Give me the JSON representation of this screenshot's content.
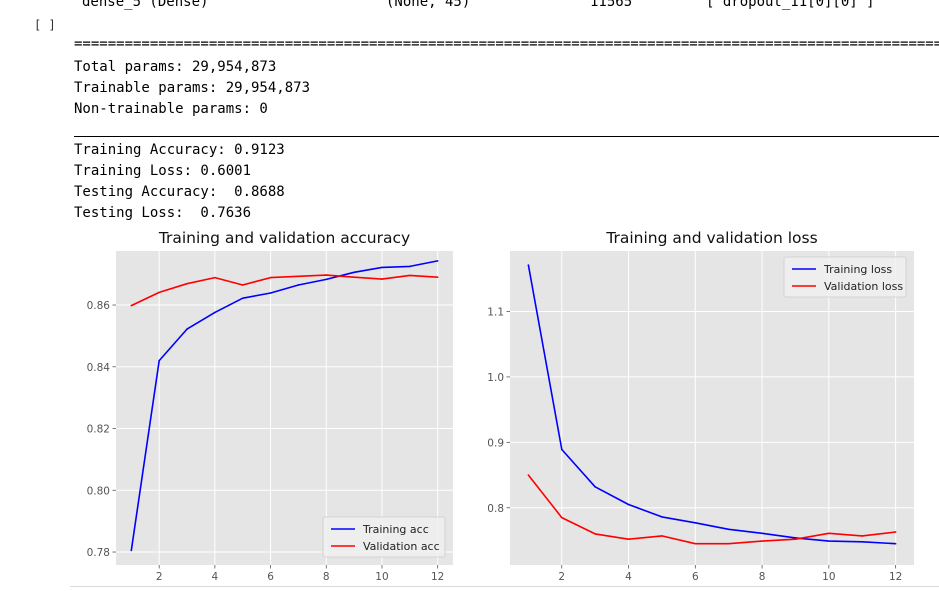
{
  "cell": {
    "prompt": "[ ]"
  },
  "model_summary": {
    "top_row": {
      "layer": "dense_5 (Dense)",
      "shape": "(None, 45)",
      "params": "11565",
      "connected": "['dropout_11[0][0]']"
    },
    "separator": "==================================================================================================================",
    "total": "Total params: 29,954,873",
    "trainable": "Trainable params: 29,954,873",
    "non_trainable": "Non-trainable params: 0"
  },
  "metrics": {
    "train_acc": "Training Accuracy: 0.9123",
    "train_loss": "Training Loss: 0.6001",
    "test_acc": "Testing Accuracy:  0.8688",
    "test_loss": "Testing Loss:  0.7636"
  },
  "chart_data": [
    {
      "type": "line",
      "title": "Training and validation accuracy",
      "xlabel": "",
      "ylabel": "",
      "x": [
        1,
        2,
        3,
        4,
        5,
        6,
        7,
        8,
        9,
        10,
        11,
        12
      ],
      "xticks": [
        2,
        4,
        6,
        8,
        10,
        12
      ],
      "yticks": [
        0.78,
        0.8,
        0.82,
        0.84,
        0.86
      ],
      "ytick_labels": [
        "0.78",
        "0.80",
        "0.82",
        "0.84",
        "0.86"
      ],
      "xlim": [
        0.45,
        12.55
      ],
      "ylim": [
        0.7758,
        0.8775
      ],
      "grid": true,
      "legend_loc": "lower right",
      "series": [
        {
          "name": "Training acc",
          "color": "#0000ff",
          "values": [
            0.7805,
            0.842,
            0.8522,
            0.8576,
            0.8622,
            0.8639,
            0.8665,
            0.8683,
            0.8706,
            0.8722,
            0.8725,
            0.8743
          ]
        },
        {
          "name": "Validation acc",
          "color": "#ff0000",
          "values": [
            0.8598,
            0.8641,
            0.8669,
            0.8689,
            0.8665,
            0.8689,
            0.8693,
            0.8697,
            0.869,
            0.8684,
            0.8696,
            0.869
          ]
        }
      ]
    },
    {
      "type": "line",
      "title": "Training and validation loss",
      "xlabel": "",
      "ylabel": "",
      "x": [
        1,
        2,
        3,
        4,
        5,
        6,
        7,
        8,
        9,
        10,
        11,
        12
      ],
      "xticks": [
        2,
        4,
        6,
        8,
        10,
        12
      ],
      "yticks": [
        0.8,
        0.9,
        1.0,
        1.1
      ],
      "ytick_labels": [
        "0.8",
        "0.9",
        "1.0",
        "1.1"
      ],
      "xlim": [
        0.45,
        12.55
      ],
      "ylim": [
        0.7125,
        1.1925
      ],
      "grid": true,
      "legend_loc": "upper right",
      "series": [
        {
          "name": "Training loss",
          "color": "#0000ff",
          "values": [
            1.171,
            0.889,
            0.832,
            0.805,
            0.786,
            0.777,
            0.767,
            0.761,
            0.754,
            0.749,
            0.748,
            0.745
          ]
        },
        {
          "name": "Validation loss",
          "color": "#ff0000",
          "values": [
            0.85,
            0.785,
            0.76,
            0.752,
            0.757,
            0.745,
            0.745,
            0.749,
            0.752,
            0.761,
            0.757,
            0.763
          ]
        }
      ]
    }
  ]
}
